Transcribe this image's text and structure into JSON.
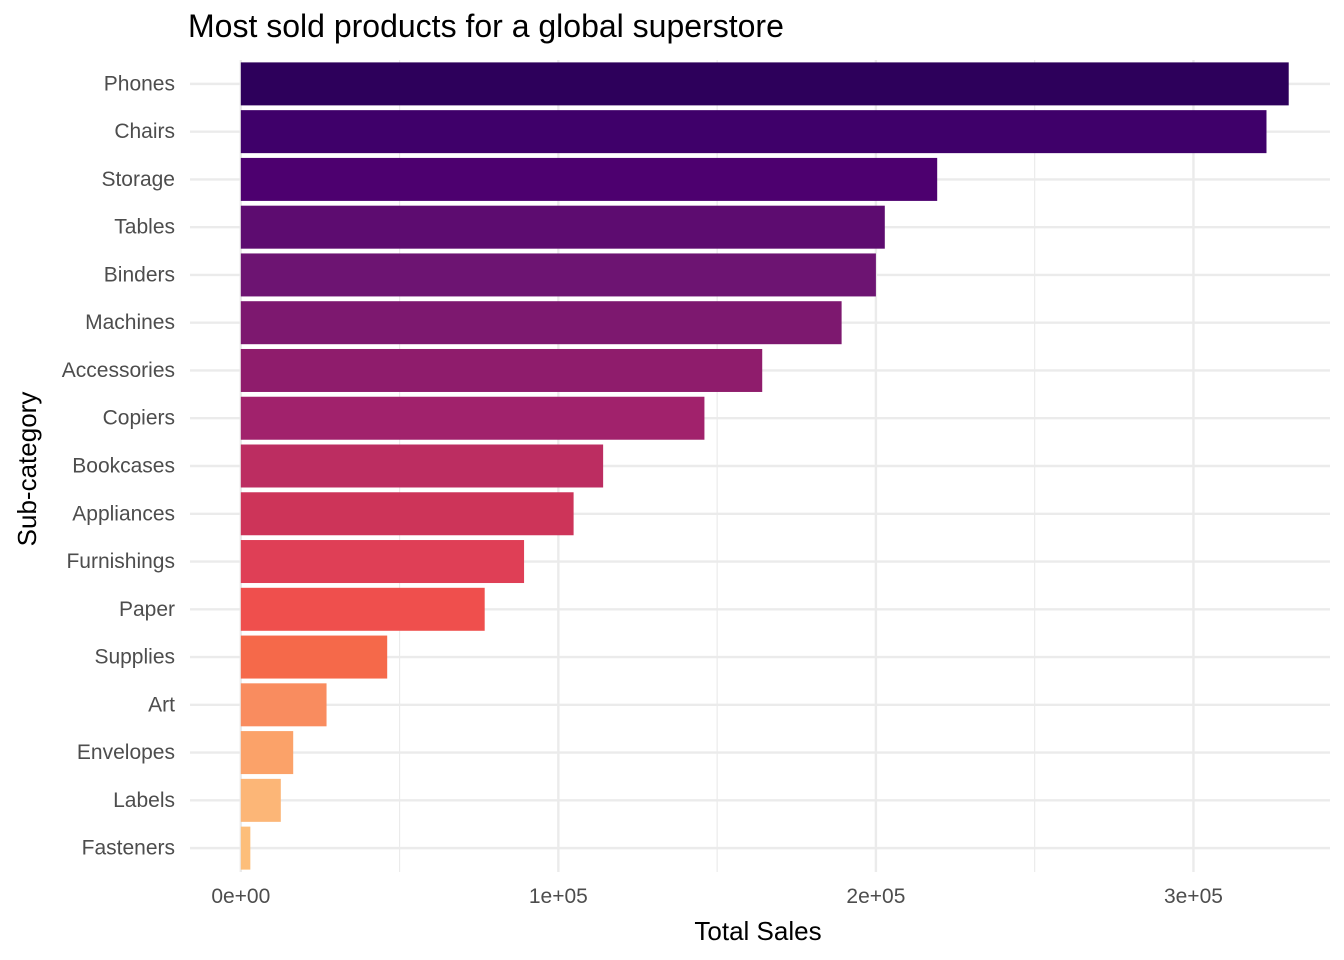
{
  "chart_data": {
    "type": "bar",
    "orientation": "horizontal",
    "title": "Most sold products for a global superstore",
    "xlabel": "Total Sales",
    "ylabel": "Sub-category",
    "categories": [
      "Phones",
      "Chairs",
      "Storage",
      "Tables",
      "Binders",
      "Machines",
      "Accessories",
      "Copiers",
      "Bookcases",
      "Appliances",
      "Furnishings",
      "Paper",
      "Supplies",
      "Art",
      "Envelopes",
      "Labels",
      "Fasteners"
    ],
    "values": [
      330000,
      323000,
      219300,
      202800,
      200000,
      189200,
      164200,
      146000,
      114100,
      104800,
      89200,
      76800,
      46100,
      27000,
      16500,
      12600,
      3000
    ],
    "xlim": [
      -16000,
      343000
    ],
    "x_ticks": [
      0,
      100000,
      200000,
      300000
    ],
    "x_tick_labels": [
      "0e+00",
      "1e+05",
      "2e+05",
      "3e+05"
    ],
    "x_minor_ticks": [
      50000,
      150000,
      250000
    ],
    "grid": true,
    "legend": "none",
    "colors": [
      "#2d005b",
      "#3f006a",
      "#4d006f",
      "#5d0c70",
      "#6d1472",
      "#7d186f",
      "#8f1c6c",
      "#a1226c",
      "#bc2d61",
      "#cd3459",
      "#df3f56",
      "#ef4f4d",
      "#f5694a",
      "#f98c5f",
      "#fba269",
      "#fcb677",
      "#fdbe7a"
    ]
  }
}
